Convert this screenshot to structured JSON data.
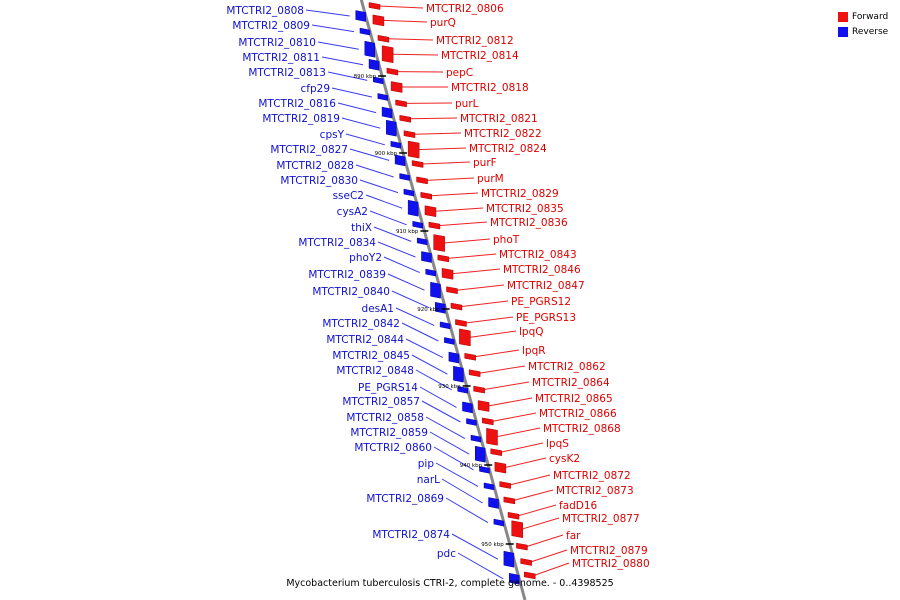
{
  "legend": {
    "forward": {
      "label": "Forward",
      "color": "#ee1111"
    },
    "reverse": {
      "label": "Reverse",
      "color": "#1111ee"
    }
  },
  "caption": "Mycobacterium tuberculosis CTRI-2, complete genome. - 0..4398525",
  "ticks": [
    "890 kbp",
    "900 kbp",
    "910 kbp",
    "920 kbp",
    "930 kbp",
    "940 kbp",
    "950 kbp"
  ],
  "reverse_genes": [
    "MTCTRI2_0808",
    "MTCTRI2_0809",
    "MTCTRI2_0810",
    "MTCTRI2_0811",
    "MTCTRI2_0813",
    "cfp29",
    "MTCTRI2_0816",
    "MTCTRI2_0819",
    "cpsY",
    "MTCTRI2_0827",
    "MTCTRI2_0828",
    "MTCTRI2_0830",
    "sseC2",
    "cysA2",
    "thiX",
    "MTCTRI2_0834",
    "phoY2",
    "MTCTRI2_0839",
    "MTCTRI2_0840",
    "desA1",
    "MTCTRI2_0842",
    "MTCTRI2_0844",
    "MTCTRI2_0845",
    "MTCTRI2_0848",
    "PE_PGRS14",
    "MTCTRI2_0857",
    "MTCTRI2_0858",
    "MTCTRI2_0859",
    "MTCTRI2_0860",
    "pip",
    "narL",
    "MTCTRI2_0869",
    "MTCTRI2_0874",
    "pdc"
  ],
  "forward_genes": [
    "MTCTRI2_0806",
    "purQ",
    "MTCTRI2_0812",
    "MTCTRI2_0814",
    "pepC",
    "MTCTRI2_0818",
    "purL",
    "MTCTRI2_0821",
    "MTCTRI2_0822",
    "MTCTRI2_0824",
    "purF",
    "purM",
    "MTCTRI2_0829",
    "MTCTRI2_0835",
    "MTCTRI2_0836",
    "phoT",
    "MTCTRI2_0843",
    "MTCTRI2_0846",
    "MTCTRI2_0847",
    "PE_PGRS12",
    "PE_PGRS13",
    "lpqQ",
    "lpqR",
    "MTCTRI2_0862",
    "MTCTRI2_0864",
    "MTCTRI2_0865",
    "MTCTRI2_0866",
    "MTCTRI2_0868",
    "lpqS",
    "cysK2",
    "MTCTRI2_0872",
    "MTCTRI2_0873",
    "fadD16",
    "MTCTRI2_0877",
    "far",
    "MTCTRI2_0879",
    "MTCTRI2_0880"
  ]
}
